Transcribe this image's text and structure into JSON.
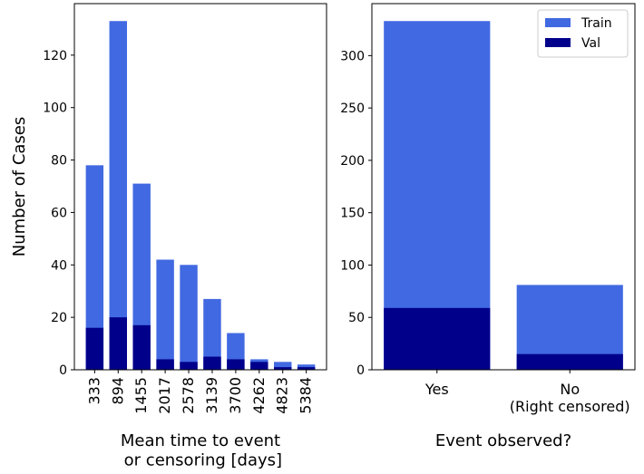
{
  "chart_data": [
    {
      "type": "bar",
      "x_label": "Mean time to event\n or censoring [days]",
      "y_label": "Number of Cases",
      "categories": [
        "333",
        "894",
        "1455",
        "2017",
        "2578",
        "3139",
        "3700",
        "4262",
        "4823",
        "5384"
      ],
      "series": [
        {
          "name": "Train",
          "color": "#4169e1",
          "values": [
            78,
            133,
            71,
            42,
            40,
            27,
            14,
            4,
            3,
            2
          ]
        },
        {
          "name": "Val",
          "color": "#00008b",
          "values": [
            16,
            20,
            17,
            4,
            3,
            5,
            4,
            3,
            1,
            1
          ]
        }
      ],
      "ylim": [
        0,
        139.65
      ],
      "yticks": [
        0,
        20,
        40,
        60,
        80,
        100,
        120
      ]
    },
    {
      "type": "bar",
      "x_label": "Event observed?",
      "categories": [
        "Yes",
        "No\n(Right censored)"
      ],
      "series": [
        {
          "name": "Train",
          "color": "#4169e1",
          "values": [
            333,
            81
          ]
        },
        {
          "name": "Val",
          "color": "#00008b",
          "values": [
            59,
            15
          ]
        }
      ],
      "ylim": [
        0,
        349.65
      ],
      "yticks": [
        0,
        50,
        100,
        150,
        200,
        250,
        300
      ],
      "legend": "upper right"
    }
  ]
}
